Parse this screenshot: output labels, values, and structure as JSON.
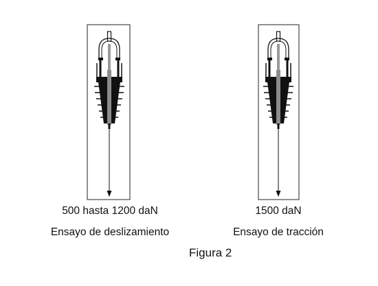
{
  "figure": {
    "caption": "Figura 2",
    "panels": [
      {
        "load_text": "500 hasta 1200 daN",
        "test_name": "Ensayo de deslizamiento"
      },
      {
        "load_text": "1500 daN",
        "test_name": "Ensayo de tracción"
      }
    ]
  }
}
